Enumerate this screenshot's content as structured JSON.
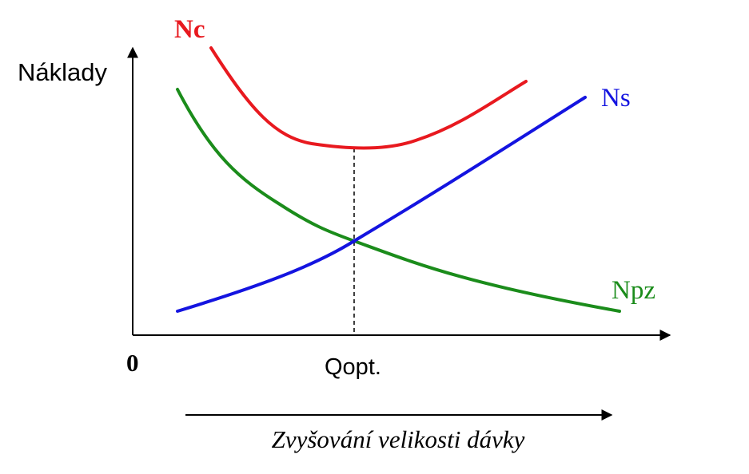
{
  "y_axis_label": "Náklady",
  "origin_label": "0",
  "optimum_label": "Qopt.",
  "direction_caption": "Zvyšování velikosti dávky",
  "curves": {
    "total": {
      "label": "Nc",
      "color": "#e8191f"
    },
    "setup": {
      "label": "Ns",
      "color": "#1414e0"
    },
    "holding": {
      "label": "Npz",
      "color": "#1b8c1b"
    }
  },
  "axis_color": "#000000"
}
